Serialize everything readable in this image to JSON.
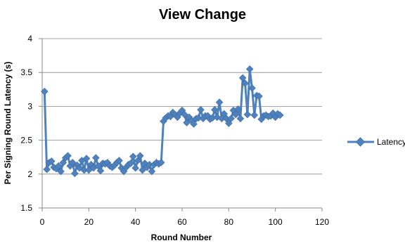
{
  "chart_data": {
    "type": "line",
    "title": "View Change",
    "xlabel": "Round Number",
    "ylabel": "Per Signing Round Latency (s)",
    "xlim": [
      0,
      120
    ],
    "ylim": [
      1.5,
      4
    ],
    "xticks": [
      0,
      20,
      40,
      60,
      80,
      100,
      120
    ],
    "yticks": [
      1.5,
      2,
      2.5,
      3,
      3.5,
      4
    ],
    "ytick_labels": [
      "1.5",
      "2",
      "2.5",
      "3",
      "3.5",
      "4"
    ],
    "grid": true,
    "legend_position": "right",
    "series": [
      {
        "name": "Latency",
        "color": "#4f81bd",
        "marker": "diamond",
        "x": [
          1,
          2,
          3,
          4,
          5,
          6,
          7,
          8,
          9,
          10,
          11,
          12,
          13,
          14,
          15,
          16,
          17,
          18,
          19,
          20,
          21,
          22,
          23,
          24,
          25,
          26,
          27,
          28,
          29,
          30,
          31,
          32,
          33,
          34,
          35,
          36,
          37,
          38,
          39,
          40,
          41,
          42,
          43,
          44,
          45,
          46,
          47,
          48,
          49,
          50,
          51,
          52,
          53,
          54,
          55,
          56,
          57,
          58,
          59,
          60,
          61,
          62,
          63,
          64,
          65,
          66,
          67,
          68,
          69,
          70,
          71,
          72,
          73,
          74,
          75,
          76,
          77,
          78,
          79,
          80,
          81,
          82,
          83,
          84,
          85,
          86,
          87,
          88,
          89,
          90,
          91,
          92,
          93,
          94,
          95,
          96,
          97,
          98,
          99,
          100,
          101,
          102
        ],
        "y": [
          3.22,
          2.07,
          2.17,
          2.19,
          2.1,
          2.08,
          2.12,
          2.04,
          2.17,
          2.24,
          2.27,
          2.12,
          2.17,
          2.01,
          2.13,
          2.09,
          2.2,
          2.06,
          2.23,
          2.06,
          2.14,
          2.09,
          2.24,
          2.12,
          2.05,
          2.16,
          2.15,
          2.17,
          2.12,
          2.1,
          2.13,
          2.17,
          2.2,
          2.09,
          2.04,
          2.1,
          2.14,
          2.16,
          2.26,
          2.09,
          2.2,
          2.27,
          2.06,
          2.16,
          2.1,
          2.14,
          2.04,
          2.14,
          2.17,
          2.15,
          2.17,
          2.78,
          2.83,
          2.86,
          2.85,
          2.91,
          2.88,
          2.84,
          2.9,
          2.94,
          2.88,
          2.76,
          2.84,
          2.79,
          2.74,
          2.82,
          2.83,
          2.95,
          2.82,
          2.86,
          2.86,
          2.81,
          2.83,
          2.95,
          2.84,
          3.06,
          2.82,
          2.89,
          2.82,
          2.75,
          2.82,
          2.94,
          2.88,
          2.96,
          2.82,
          3.42,
          3.34,
          2.88,
          3.55,
          3.27,
          2.87,
          3.16,
          3.15,
          2.81,
          2.86,
          2.87,
          2.85,
          2.86,
          2.9,
          2.84,
          2.89,
          2.87
        ]
      }
    ]
  }
}
